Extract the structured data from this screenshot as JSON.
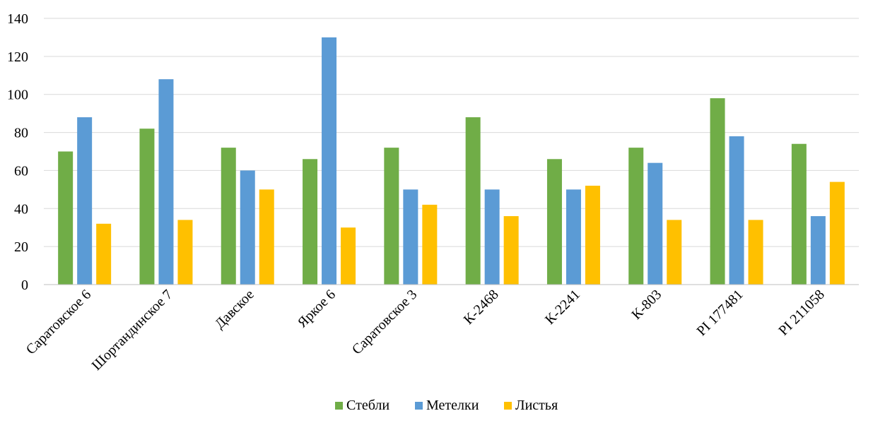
{
  "chart_data": {
    "type": "bar",
    "title": "",
    "xlabel": "",
    "ylabel": "",
    "ylim": [
      0,
      140
    ],
    "yticks": [
      "0",
      "20",
      "40",
      "60",
      "80",
      "100",
      "120",
      "140"
    ],
    "grid": true,
    "legend_position": "bottom",
    "categories": [
      "Саратовское 6",
      "Шортандинское 7",
      "Давское",
      "Яркое 6",
      "Саратовское 3",
      "К-2468",
      "К-2241",
      "К-803",
      "PI 177481",
      "PI 211058"
    ],
    "series": [
      {
        "name": "Стебли",
        "color": "#70ad47",
        "values": [
          70,
          82,
          72,
          66,
          72,
          88,
          66,
          72,
          98,
          74
        ]
      },
      {
        "name": "Метелки",
        "color": "#5b9bd5",
        "values": [
          88,
          108,
          60,
          130,
          50,
          50,
          50,
          64,
          78,
          36
        ]
      },
      {
        "name": "Листья",
        "color": "#ffc000",
        "values": [
          32,
          34,
          50,
          30,
          42,
          36,
          52,
          34,
          34,
          54
        ]
      }
    ]
  }
}
